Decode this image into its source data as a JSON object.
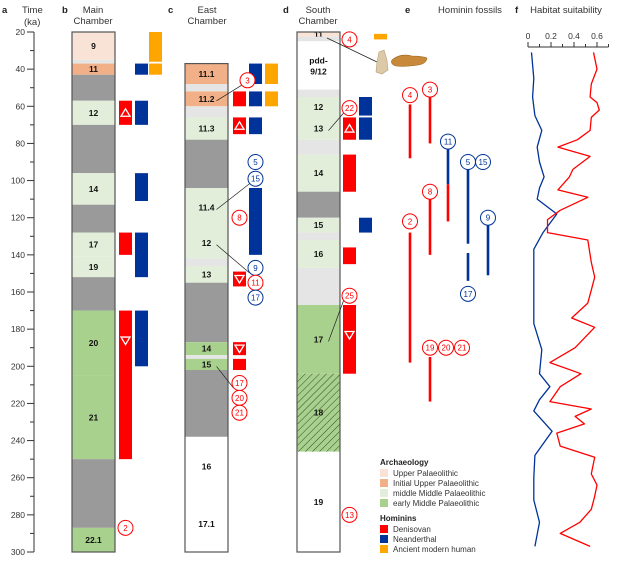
{
  "colors": {
    "upper_palaeolithic": "#f9e3d6",
    "initial_upper_palaeolithic": "#f2b088",
    "middle_middle_palaeolithic": "#e2eed9",
    "early_middle_palaeolithic": "#a9d18e",
    "sterile": "#9a9a9a",
    "gap": "#e5e5e5",
    "none": "#ffffff",
    "denisovan": "#ff0000",
    "neanderthal": "#003399",
    "modern_human": "#ffa500"
  },
  "axis": {
    "letter": "a",
    "title": "Time",
    "unit": "(ka)",
    "range": [
      20,
      300
    ],
    "ticks": [
      "20",
      "40",
      "60",
      "80",
      "100",
      "120",
      "140",
      "160",
      "180",
      "200",
      "220",
      "240",
      "260",
      "280",
      "300"
    ]
  },
  "chambers": [
    {
      "letter": "b",
      "title1": "Main",
      "title2": "Chamber",
      "layers": [
        {
          "from": 20,
          "to": 35,
          "type": "upper_palaeolithic",
          "label": "9"
        },
        {
          "from": 35,
          "to": 37,
          "type": "gap",
          "label": ""
        },
        {
          "from": 37,
          "to": 43,
          "type": "initial_upper_palaeolithic",
          "label": "11"
        },
        {
          "from": 43,
          "to": 57,
          "type": "sterile",
          "label": ""
        },
        {
          "from": 57,
          "to": 70,
          "type": "middle_middle_palaeolithic",
          "label": "12"
        },
        {
          "from": 70,
          "to": 96,
          "type": "sterile",
          "label": ""
        },
        {
          "from": 96,
          "to": 113,
          "type": "middle_middle_palaeolithic",
          "label": "14"
        },
        {
          "from": 113,
          "to": 128,
          "type": "sterile",
          "label": ""
        },
        {
          "from": 128,
          "to": 141,
          "type": "middle_middle_palaeolithic",
          "label": "17"
        },
        {
          "from": 141,
          "to": 152,
          "type": "middle_middle_palaeolithic",
          "label": "19"
        },
        {
          "from": 152,
          "to": 170,
          "type": "sterile",
          "label": ""
        },
        {
          "from": 170,
          "to": 205,
          "type": "early_middle_palaeolithic",
          "label": "20"
        },
        {
          "from": 205,
          "to": 250,
          "type": "early_middle_palaeolithic",
          "label": "21"
        },
        {
          "from": 250,
          "to": 287,
          "type": "sterile",
          "label": ""
        },
        {
          "from": 287,
          "to": 300,
          "type": "early_middle_palaeolithic",
          "label": "22.1"
        }
      ],
      "markers": [
        {
          "from": 20,
          "to": 36,
          "hominin": "modern_human",
          "col": 2,
          "symbol": ""
        },
        {
          "from": 37,
          "to": 43,
          "hominin": "neanderthal",
          "col": 1,
          "symbol": ""
        },
        {
          "from": 37,
          "to": 43,
          "hominin": "modern_human",
          "col": 2,
          "symbol": ""
        },
        {
          "from": 57,
          "to": 70,
          "hominin": "denisovan",
          "col": 0,
          "symbol": "up"
        },
        {
          "from": 57,
          "to": 70,
          "hominin": "neanderthal",
          "col": 1,
          "symbol": ""
        },
        {
          "from": 96,
          "to": 111,
          "hominin": "neanderthal",
          "col": 1,
          "symbol": ""
        },
        {
          "from": 128,
          "to": 140,
          "hominin": "denisovan",
          "col": 0,
          "symbol": ""
        },
        {
          "from": 128,
          "to": 152,
          "hominin": "neanderthal",
          "col": 1,
          "symbol": ""
        },
        {
          "from": 170,
          "to": 250,
          "hominin": "denisovan",
          "col": 0,
          "symbol": "down"
        },
        {
          "from": 170,
          "to": 200,
          "hominin": "neanderthal",
          "col": 1,
          "symbol": ""
        }
      ],
      "circles": [
        {
          "label": "2",
          "t": 287,
          "col": 0,
          "hominin": "denisovan",
          "leader": ""
        }
      ]
    },
    {
      "letter": "c",
      "title1": "East",
      "title2": "Chamber",
      "layers": [
        {
          "from": 37,
          "to": 48,
          "type": "initial_upper_palaeolithic",
          "label": "11.1"
        },
        {
          "from": 48,
          "to": 52,
          "type": "gap",
          "label": ""
        },
        {
          "from": 52,
          "to": 60,
          "type": "initial_upper_palaeolithic",
          "label": "11.2"
        },
        {
          "from": 60,
          "to": 66,
          "type": "gap",
          "label": ""
        },
        {
          "from": 66,
          "to": 78,
          "type": "middle_middle_palaeolithic",
          "label": "11.3"
        },
        {
          "from": 78,
          "to": 104,
          "type": "sterile",
          "label": ""
        },
        {
          "from": 104,
          "to": 125,
          "type": "middle_middle_palaeolithic",
          "label": "11.4"
        },
        {
          "from": 125,
          "to": 142,
          "type": "middle_middle_palaeolithic",
          "label": "12"
        },
        {
          "from": 142,
          "to": 146,
          "type": "gap",
          "label": ""
        },
        {
          "from": 146,
          "to": 155,
          "type": "middle_middle_palaeolithic",
          "label": "13"
        },
        {
          "from": 155,
          "to": 187,
          "type": "sterile",
          "label": ""
        },
        {
          "from": 187,
          "to": 194,
          "type": "early_middle_palaeolithic",
          "label": "14"
        },
        {
          "from": 194,
          "to": 196,
          "type": "gap",
          "label": ""
        },
        {
          "from": 196,
          "to": 202,
          "type": "early_middle_palaeolithic",
          "label": "15"
        },
        {
          "from": 202,
          "to": 238,
          "type": "sterile",
          "label": ""
        },
        {
          "from": 238,
          "to": 270,
          "type": "none",
          "label": "16"
        },
        {
          "from": 270,
          "to": 300,
          "type": "none",
          "label": "17.1"
        }
      ],
      "markers": [
        {
          "from": 37,
          "to": 48,
          "hominin": "neanderthal",
          "col": 1,
          "symbol": ""
        },
        {
          "from": 37,
          "to": 48,
          "hominin": "modern_human",
          "col": 2,
          "symbol": ""
        },
        {
          "from": 52,
          "to": 60,
          "hominin": "denisovan",
          "col": 0,
          "symbol": ""
        },
        {
          "from": 52,
          "to": 60,
          "hominin": "neanderthal",
          "col": 1,
          "symbol": ""
        },
        {
          "from": 52,
          "to": 60,
          "hominin": "modern_human",
          "col": 2,
          "symbol": ""
        },
        {
          "from": 66,
          "to": 75,
          "hominin": "denisovan",
          "col": 0,
          "symbol": "up"
        },
        {
          "from": 66,
          "to": 75,
          "hominin": "neanderthal",
          "col": 1,
          "symbol": ""
        },
        {
          "from": 104,
          "to": 140,
          "hominin": "neanderthal",
          "col": 1,
          "symbol": ""
        },
        {
          "from": 149,
          "to": 157,
          "hominin": "denisovan",
          "col": 0,
          "symbol": "down"
        },
        {
          "from": 187,
          "to": 194,
          "hominin": "denisovan",
          "col": 0,
          "symbol": "down"
        },
        {
          "from": 196,
          "to": 202,
          "hominin": "denisovan",
          "col": 0,
          "symbol": ""
        }
      ],
      "circles": [
        {
          "label": "3",
          "t": 46,
          "col": 0.5,
          "hominin": "denisovan",
          "leader": "11.2"
        },
        {
          "label": "5",
          "t": 90,
          "col": 1,
          "hominin": "neanderthal",
          "leader": ""
        },
        {
          "label": "15",
          "t": 99,
          "col": 1,
          "hominin": "neanderthal",
          "leader": "11.4"
        },
        {
          "label": "8",
          "t": 120,
          "col": 0,
          "hominin": "denisovan",
          "leader": ""
        },
        {
          "label": "9",
          "t": 147,
          "col": 1,
          "hominin": "neanderthal",
          "leader": "12"
        },
        {
          "label": "11",
          "t": 155,
          "col": 1,
          "hominin": "denisovan",
          "leader": ""
        },
        {
          "label": "17",
          "t": 163,
          "col": 1,
          "hominin": "neanderthal",
          "leader": ""
        },
        {
          "label": "17",
          "t": 209,
          "col": 0,
          "hominin": "denisovan",
          "leader": "15"
        },
        {
          "label": "20",
          "t": 217,
          "col": 0,
          "hominin": "denisovan",
          "leader": ""
        },
        {
          "label": "21",
          "t": 225,
          "col": 0,
          "hominin": "denisovan",
          "leader": ""
        }
      ]
    },
    {
      "letter": "d",
      "title1": "South",
      "title2": "Chamber",
      "layers": [
        {
          "from": 20,
          "to": 22.5,
          "type": "upper_palaeolithic",
          "label": "11"
        },
        {
          "from": 22.5,
          "to": 25,
          "type": "gap",
          "label": ""
        },
        {
          "from": 25,
          "to": 51,
          "type": "none",
          "label": "pdd-|9/12"
        },
        {
          "from": 51,
          "to": 55,
          "type": "gap",
          "label": ""
        },
        {
          "from": 55,
          "to": 66,
          "type": "middle_middle_palaeolithic",
          "label": "12"
        },
        {
          "from": 66,
          "to": 78,
          "type": "middle_middle_palaeolithic",
          "label": "13"
        },
        {
          "from": 78,
          "to": 86,
          "type": "gap",
          "label": ""
        },
        {
          "from": 86,
          "to": 106,
          "type": "middle_middle_palaeolithic",
          "label": "14"
        },
        {
          "from": 106,
          "to": 120,
          "type": "sterile",
          "label": ""
        },
        {
          "from": 120,
          "to": 128,
          "type": "middle_middle_palaeolithic",
          "label": "15"
        },
        {
          "from": 128,
          "to": 132,
          "type": "gap",
          "label": ""
        },
        {
          "from": 132,
          "to": 147,
          "type": "middle_middle_palaeolithic",
          "label": "16"
        },
        {
          "from": 147,
          "to": 167,
          "type": "gap",
          "label": ""
        },
        {
          "from": 167,
          "to": 204,
          "type": "early_middle_palaeolithic",
          "label": "17"
        },
        {
          "from": 204,
          "to": 246,
          "type": "hatched",
          "label": "18"
        },
        {
          "from": 246,
          "to": 300,
          "type": "none",
          "label": "19"
        }
      ],
      "markers": [
        {
          "from": 21,
          "to": 24,
          "hominin": "modern_human",
          "col": 2,
          "symbol": ""
        },
        {
          "from": 55,
          "to": 65,
          "hominin": "neanderthal",
          "col": 1,
          "symbol": ""
        },
        {
          "from": 66,
          "to": 78,
          "hominin": "denisovan",
          "col": 0,
          "symbol": "up"
        },
        {
          "from": 66,
          "to": 78,
          "hominin": "neanderthal",
          "col": 1,
          "symbol": ""
        },
        {
          "from": 86,
          "to": 106,
          "hominin": "denisovan",
          "col": 0,
          "symbol": ""
        },
        {
          "from": 120,
          "to": 128,
          "hominin": "neanderthal",
          "col": 1,
          "symbol": ""
        },
        {
          "from": 136,
          "to": 145,
          "hominin": "denisovan",
          "col": 0,
          "symbol": ""
        },
        {
          "from": 167,
          "to": 204,
          "hominin": "denisovan",
          "col": 0,
          "symbol": "down"
        }
      ],
      "circles": [
        {
          "label": "4",
          "t": 24,
          "col": 0,
          "hominin": "denisovan",
          "leader": ""
        },
        {
          "label": "22",
          "t": 61,
          "col": 0,
          "hominin": "denisovan",
          "leader": "13"
        },
        {
          "label": "25",
          "t": 162,
          "col": 0,
          "hominin": "denisovan",
          "leader": "17"
        },
        {
          "label": "13",
          "t": 280,
          "col": 0,
          "hominin": "denisovan",
          "leader": ""
        }
      ]
    }
  ],
  "fossils": {
    "letter": "e",
    "title": "Hominin fossils",
    "lines": [
      {
        "label": "4",
        "label_t": 54,
        "segments": [
          {
            "from": 59,
            "to": 88,
            "hominin": "denisovan"
          }
        ]
      },
      {
        "label": "3",
        "label_t": 51,
        "segments": [
          {
            "from": 55,
            "to": 80,
            "hominin": "denisovan"
          }
        ]
      },
      {
        "label": "11",
        "label_t": 79,
        "segments": [
          {
            "from": 83,
            "to": 102,
            "hominin": "neanderthal"
          },
          {
            "from": 102,
            "to": 122,
            "hominin": "denisovan"
          }
        ]
      },
      {
        "label": "5",
        "label_t": 90,
        "segments": [
          {
            "from": 94,
            "to": 134,
            "hominin": "neanderthal"
          },
          {
            "from": 139,
            "to": 154,
            "hominin": "neanderthal"
          }
        ]
      },
      {
        "label": "15",
        "label_t": 90,
        "segments": []
      },
      {
        "label": "8",
        "label_t": 106,
        "segments": [
          {
            "from": 110,
            "to": 140,
            "hominin": "denisovan"
          }
        ]
      },
      {
        "label": "2",
        "label_t": 122,
        "segments": [
          {
            "from": 128,
            "to": 198,
            "hominin": "denisovan"
          }
        ]
      },
      {
        "label": "9",
        "label_t": 120,
        "segments": [
          {
            "from": 124,
            "to": 151,
            "hominin": "neanderthal"
          }
        ]
      },
      {
        "label": "17",
        "label_t": 161,
        "segments": [],
        "hominin": "neanderthal"
      },
      {
        "label": "19",
        "label_t": 190,
        "segments": [
          {
            "from": 195,
            "to": 219,
            "hominin": "denisovan"
          }
        ]
      },
      {
        "label": "20",
        "label_t": 190,
        "segments": []
      },
      {
        "label": "21",
        "label_t": 190,
        "segments": []
      }
    ]
  },
  "habitat": {
    "letter": "f",
    "title": "Habitat suitability",
    "ticks": [
      "0",
      "0.2",
      "0.4",
      "0.6"
    ],
    "xlim": [
      0,
      0.7
    ],
    "denisovan": [
      [
        31,
        0.57
      ],
      [
        40,
        0.6
      ],
      [
        48,
        0.55
      ],
      [
        55,
        0.54
      ],
      [
        58,
        0.6
      ],
      [
        62,
        0.62
      ],
      [
        66,
        0.55
      ],
      [
        73,
        0.54
      ],
      [
        78,
        0.43
      ],
      [
        82,
        0.26
      ],
      [
        87,
        0.54
      ],
      [
        94,
        0.39
      ],
      [
        98,
        0.36
      ],
      [
        105,
        0.26
      ],
      [
        109,
        0.52
      ],
      [
        116,
        0.28
      ],
      [
        121,
        0.17
      ],
      [
        128,
        0.17
      ],
      [
        132,
        0.52
      ],
      [
        144,
        0.55
      ],
      [
        152,
        0.58
      ],
      [
        159,
        0.55
      ],
      [
        166,
        0.52
      ],
      [
        174,
        0.38
      ],
      [
        179,
        0.58
      ],
      [
        190,
        0.41
      ],
      [
        198,
        0.19
      ],
      [
        204,
        0.46
      ],
      [
        211,
        0.28
      ],
      [
        219,
        0.19
      ],
      [
        223,
        0.55
      ],
      [
        227,
        0.41
      ],
      [
        231,
        0.49
      ],
      [
        236,
        0.25
      ],
      [
        243,
        0.28
      ],
      [
        249,
        0.58
      ],
      [
        258,
        0.55
      ],
      [
        264,
        0.6
      ],
      [
        270,
        0.58
      ],
      [
        277,
        0.55
      ],
      [
        284,
        0.45
      ],
      [
        290,
        0.28
      ],
      [
        297,
        0.54
      ]
    ],
    "neanderthal": [
      [
        31,
        0.03
      ],
      [
        45,
        0.05
      ],
      [
        55,
        0.04
      ],
      [
        65,
        0.06
      ],
      [
        73,
        0.12
      ],
      [
        82,
        0.08
      ],
      [
        90,
        0.1
      ],
      [
        98,
        0.14
      ],
      [
        104,
        0.1
      ],
      [
        110,
        0.08
      ],
      [
        118,
        0.25
      ],
      [
        128,
        0.13
      ],
      [
        137,
        0.05
      ],
      [
        150,
        0.05
      ],
      [
        163,
        0.05
      ],
      [
        177,
        0.05
      ],
      [
        191,
        0.12
      ],
      [
        204,
        0.1
      ],
      [
        211,
        0.19
      ],
      [
        218,
        0.1
      ],
      [
        224,
        0.05
      ],
      [
        235,
        0.21
      ],
      [
        248,
        0.06
      ],
      [
        260,
        0.05
      ],
      [
        272,
        0.05
      ],
      [
        284,
        0.1
      ],
      [
        297,
        0.06
      ]
    ]
  },
  "legend": {
    "archaeology_title": "Archaeology",
    "archaeology": [
      {
        "label": "Upper Palaeolithic",
        "type": "upper_palaeolithic"
      },
      {
        "label": "Initial Upper Palaeolithic",
        "type": "initial_upper_palaeolithic"
      },
      {
        "label": "middle Middle Palaeolithic",
        "type": "middle_middle_palaeolithic"
      },
      {
        "label": "early Middle Palaeolithic",
        "type": "early_middle_palaeolithic"
      }
    ],
    "hominins_title": "Hominins",
    "hominins": [
      {
        "label": "Denisovan",
        "type": "denisovan"
      },
      {
        "label": "Neanderthal",
        "type": "neanderthal"
      },
      {
        "label": "Ancient modern human",
        "type": "modern_human"
      }
    ]
  }
}
